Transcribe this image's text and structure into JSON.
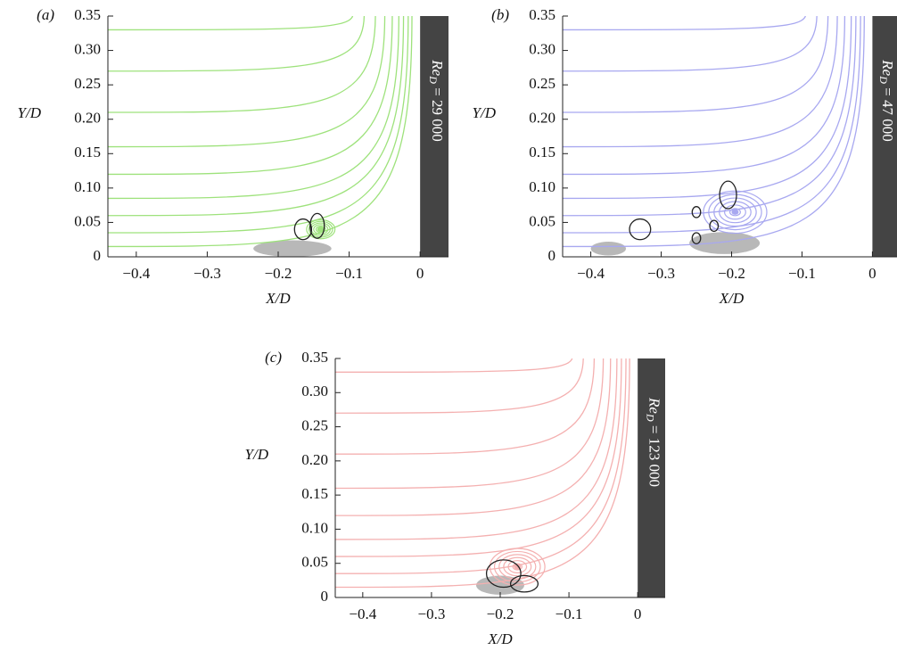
{
  "chart_data": [
    {
      "type": "streamline",
      "panel_label": "(a)",
      "xlabel": "X/D",
      "ylabel": "Y/D",
      "color": "#9ee27c",
      "annotation": {
        "base": "Re",
        "sub": "D",
        "rest": " = 29 000"
      },
      "xlim": [
        -0.44,
        0.04
      ],
      "ylim": [
        0,
        0.35
      ],
      "xticks": [
        {
          "value": -0.4,
          "label": "−0.4"
        },
        {
          "value": -0.3,
          "label": "−0.3"
        },
        {
          "value": -0.2,
          "label": "−0.2"
        },
        {
          "value": -0.1,
          "label": "−0.1"
        },
        0
      ],
      "yticks": [
        0,
        0.05,
        {
          "value": 0.1,
          "label": "0.10"
        },
        0.15,
        {
          "value": 0.2,
          "label": "0.20"
        },
        0.25,
        {
          "value": 0.3,
          "label": "0.30"
        },
        0.35
      ]
    },
    {
      "type": "streamline",
      "panel_label": "(b)",
      "xlabel": "X/D",
      "ylabel": "Y/D",
      "color": "#a8a8f0",
      "annotation": {
        "base": "Re",
        "sub": "D",
        "rest": " = 47 000"
      },
      "xlim": [
        -0.44,
        0.04
      ],
      "ylim": [
        0,
        0.35
      ],
      "xticks": [
        {
          "value": -0.4,
          "label": "−0.4"
        },
        {
          "value": -0.3,
          "label": "−0.3"
        },
        {
          "value": -0.2,
          "label": "−0.2"
        },
        {
          "value": -0.1,
          "label": "−0.1"
        },
        0
      ],
      "yticks": [
        0,
        0.05,
        {
          "value": 0.1,
          "label": "0.10"
        },
        0.15,
        {
          "value": 0.2,
          "label": "0.20"
        },
        0.25,
        {
          "value": 0.3,
          "label": "0.30"
        },
        0.35
      ]
    },
    {
      "type": "streamline",
      "panel_label": "(c)",
      "xlabel": "X/D",
      "ylabel": "Y/D",
      "color": "#f4b0b0",
      "annotation": {
        "base": "Re",
        "sub": "D",
        "rest": " = 123 000"
      },
      "xlim": [
        -0.44,
        0.04
      ],
      "ylim": [
        0,
        0.35
      ],
      "xticks": [
        {
          "value": -0.4,
          "label": "−0.4"
        },
        {
          "value": -0.3,
          "label": "−0.3"
        },
        {
          "value": -0.2,
          "label": "−0.2"
        },
        {
          "value": -0.1,
          "label": "−0.1"
        },
        0
      ],
      "yticks": [
        0,
        0.05,
        {
          "value": 0.1,
          "label": "0.10"
        },
        0.15,
        {
          "value": 0.2,
          "label": "0.20"
        },
        0.25,
        {
          "value": 0.3,
          "label": "0.30"
        },
        0.35
      ]
    }
  ]
}
